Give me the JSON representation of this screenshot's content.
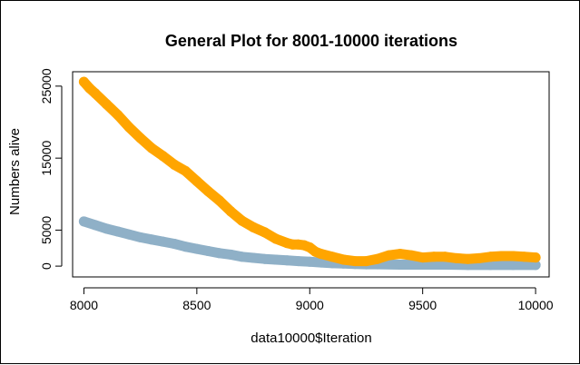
{
  "chart_data": {
    "type": "scatter",
    "title": "General Plot for 8001-10000 iterations",
    "xlabel": "data10000$Iteration",
    "ylabel": "Numbers alive",
    "xlim": [
      7950,
      10060
    ],
    "ylim": [
      -1500,
      27000
    ],
    "xticks": [
      8000,
      8500,
      9000,
      9500,
      10000
    ],
    "xtick_labels": [
      "8000",
      "8500",
      "9000",
      "9500",
      "10000"
    ],
    "yticks": [
      0,
      5000,
      15000,
      25000
    ],
    "ytick_labels": [
      "0",
      "5000",
      "15000",
      "25000"
    ],
    "grid": false,
    "legend": "none",
    "series": [
      {
        "color": "#8fb0c7",
        "x": [
          8000,
          8050,
          8100,
          8150,
          8200,
          8250,
          8300,
          8350,
          8400,
          8450,
          8500,
          8550,
          8600,
          8650,
          8700,
          8750,
          8800,
          8850,
          8900,
          8950,
          9000,
          9050,
          9100,
          9150,
          9200,
          9250,
          9300,
          9400,
          9500,
          9600,
          9700,
          9800,
          9900,
          10000
        ],
        "y": [
          6200,
          5700,
          5200,
          4800,
          4400,
          4000,
          3700,
          3400,
          3100,
          2700,
          2400,
          2100,
          1800,
          1600,
          1300,
          1150,
          1000,
          900,
          800,
          700,
          600,
          500,
          400,
          350,
          300,
          250,
          250,
          200,
          200,
          200,
          150,
          150,
          150,
          150
        ]
      },
      {
        "color": "#ffa500",
        "x": [
          8000,
          8025,
          8050,
          8100,
          8150,
          8200,
          8250,
          8300,
          8350,
          8400,
          8450,
          8500,
          8550,
          8600,
          8650,
          8700,
          8750,
          8800,
          8850,
          8900,
          8925,
          8950,
          8975,
          9000,
          9025,
          9050,
          9100,
          9150,
          9200,
          9250,
          9300,
          9350,
          9400,
          9450,
          9500,
          9550,
          9600,
          9650,
          9700,
          9750,
          9800,
          9850,
          9900,
          9950,
          10000
        ],
        "y": [
          25600,
          24700,
          24000,
          22500,
          21000,
          19300,
          17800,
          16400,
          15300,
          14100,
          13200,
          11800,
          10400,
          9100,
          7600,
          6300,
          5400,
          4700,
          3800,
          3200,
          3000,
          3000,
          2900,
          2600,
          2000,
          1700,
          1300,
          900,
          700,
          700,
          1000,
          1500,
          1700,
          1500,
          1200,
          1300,
          1300,
          1100,
          1000,
          1100,
          1300,
          1400,
          1400,
          1300,
          1200
        ]
      }
    ]
  }
}
